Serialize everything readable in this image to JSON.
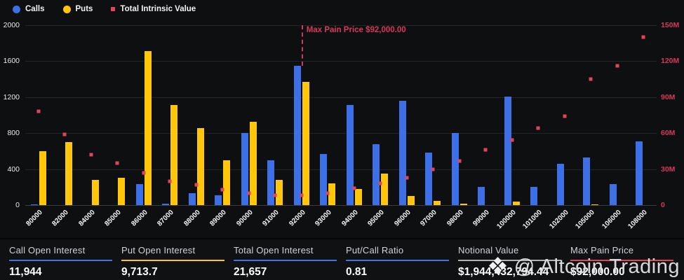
{
  "legend": {
    "calls": "Calls",
    "puts": "Puts",
    "tiv": "Total Intrinsic Value"
  },
  "colors": {
    "calls": "#3d70e6",
    "puts": "#ffc60a",
    "tiv": "#e0455c",
    "right_axis_text": "#d8375a",
    "notional_underline": "#b0b4b8"
  },
  "annotation": {
    "label": "Max Pain Price $92,000.00",
    "strike": "92000"
  },
  "chart_data": {
    "type": "bar",
    "title": "",
    "categories": [
      "80000",
      "82000",
      "84000",
      "85000",
      "86000",
      "87000",
      "88000",
      "89000",
      "90000",
      "91000",
      "92000",
      "93000",
      "94000",
      "95000",
      "96000",
      "97000",
      "98000",
      "99000",
      "100000",
      "101000",
      "102000",
      "105000",
      "106000",
      "108000"
    ],
    "series": [
      {
        "name": "Calls",
        "type": "bar",
        "axis": "left",
        "values": [
          10,
          0,
          0,
          0,
          230,
          15,
          130,
          110,
          800,
          500,
          1550,
          570,
          1110,
          680,
          1160,
          580,
          800,
          200,
          1210,
          200,
          460,
          530,
          230,
          710
        ]
      },
      {
        "name": "Puts",
        "type": "bar",
        "axis": "left",
        "values": [
          600,
          700,
          280,
          300,
          1710,
          1110,
          860,
          500,
          930,
          280,
          1370,
          240,
          180,
          350,
          100,
          50,
          15,
          0,
          40,
          0,
          0,
          10,
          0,
          0
        ]
      },
      {
        "name": "Total Intrinsic Value",
        "type": "scatter",
        "axis": "right",
        "unit": "M",
        "values": [
          78,
          59,
          42,
          35,
          27,
          20,
          17,
          13,
          10,
          8,
          8,
          10,
          14,
          18,
          23,
          30,
          37,
          46,
          54,
          64,
          74,
          105,
          116,
          140
        ]
      }
    ],
    "y_left": {
      "ticks": [
        "2000",
        "1600",
        "1200",
        "800",
        "400",
        "0"
      ],
      "max": 2000
    },
    "y_right": {
      "ticks": [
        "150M",
        "120M",
        "90M",
        "60M",
        "30M",
        "0"
      ],
      "max": 150
    },
    "grid": true,
    "legend_position": "top-left",
    "max_pain_index": 10
  },
  "stats": [
    {
      "label": "Call Open Interest",
      "value": "11,944"
    },
    {
      "label": "Put Open Interest",
      "value": "9,713.7"
    },
    {
      "label": "Total Open Interest",
      "value": "21,657"
    },
    {
      "label": "Put/Call Ratio",
      "value": "0.81"
    },
    {
      "label": "Notional Value",
      "value": "$1,944,432,794.44"
    },
    {
      "label": "Max Pain Price",
      "value": "$92,000.00"
    }
  ],
  "watermark": {
    "logo": "binance-diamond-icon",
    "text": "@ Altcoin Trading"
  }
}
